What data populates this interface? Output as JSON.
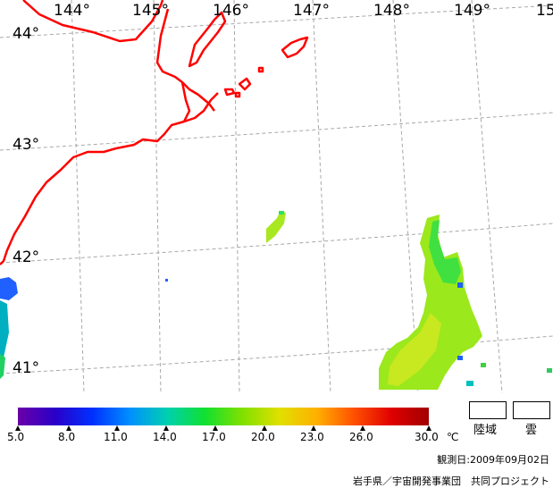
{
  "map": {
    "lon_labels": [
      "144°",
      "145°",
      "146°",
      "147°",
      "148°",
      "149°",
      "15"
    ],
    "lat_labels": [
      "44°",
      "43°",
      "42°",
      "41°"
    ]
  },
  "colorbar": {
    "ticks": [
      "5.0",
      "8.0",
      "11.0",
      "14.0",
      "17.0",
      "20.0",
      "23.0",
      "26.0",
      "30.0"
    ],
    "unit": "℃",
    "stops": [
      "#6a00a8",
      "#2a00c8",
      "#0030ff",
      "#0090ff",
      "#00d0b0",
      "#10e030",
      "#80e000",
      "#e0e000",
      "#ffb000",
      "#ff5000",
      "#e00000",
      "#a00000"
    ]
  },
  "legend": {
    "land_label": "陸域",
    "cloud_label": "雲"
  },
  "footer": {
    "observation_date": "観測日:2009年09月02日",
    "credit": "岩手県／宇宙開発事業団　共同プロジェクト"
  },
  "colors": {
    "coastline": "#ff0000",
    "grid": "#a0a0a0"
  }
}
